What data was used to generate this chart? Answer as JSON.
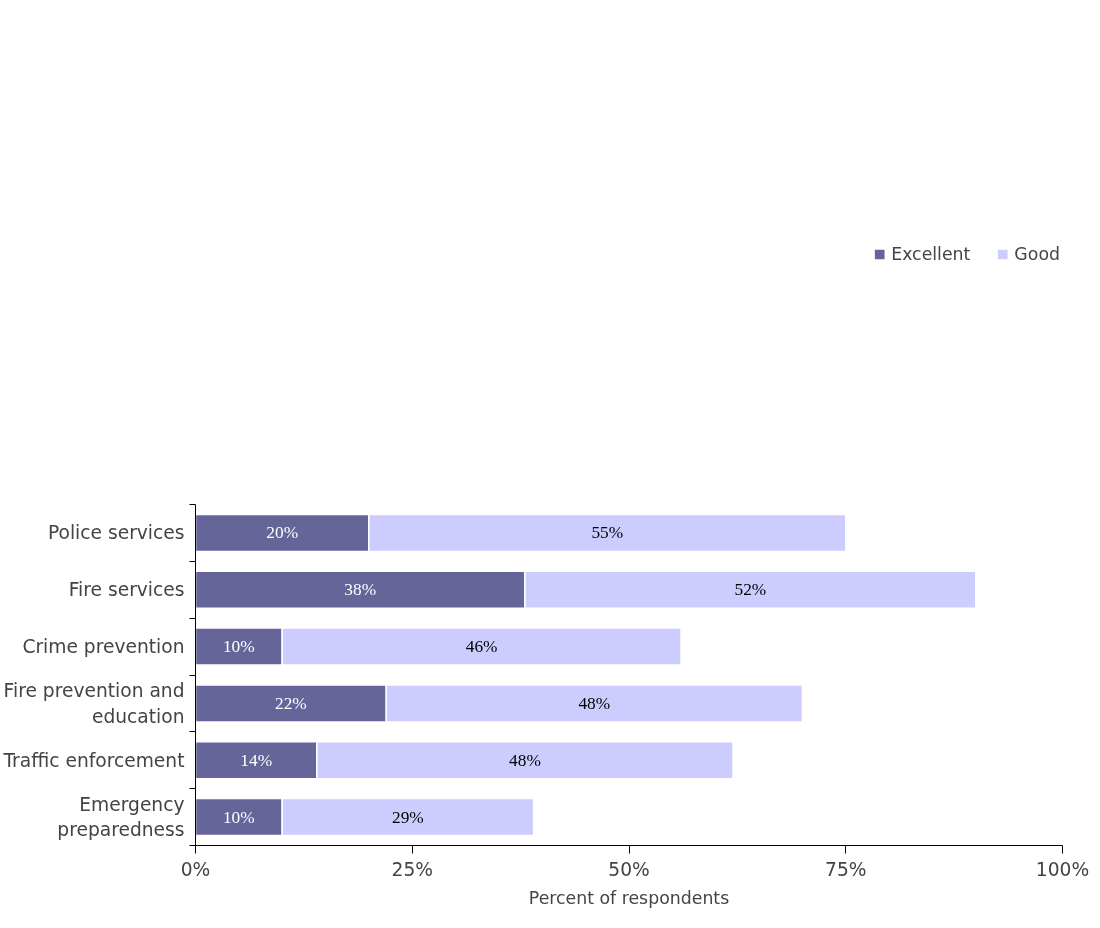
{
  "chart_data": {
    "type": "bar",
    "orientation": "horizontal",
    "stacked": true,
    "xlabel": "Percent of respondents",
    "categories": [
      "Police services",
      "Fire services",
      "Crime prevention",
      "Fire prevention and education",
      "Traffic enforcement",
      "Emergency preparedness"
    ],
    "series": [
      {
        "name": "Excellent",
        "color": "#65659a",
        "values": [
          20,
          38,
          10,
          22,
          14,
          10
        ],
        "value_labels": [
          "20%",
          "38%",
          "10%",
          "22%",
          "14%",
          "10%"
        ]
      },
      {
        "name": "Good",
        "color": "#ccccff",
        "values": [
          55,
          52,
          46,
          48,
          48,
          29
        ],
        "value_labels": [
          "55%",
          "52%",
          "46%",
          "48%",
          "48%",
          "29%"
        ]
      }
    ],
    "xlim": [
      0,
      100
    ],
    "xticks": [
      {
        "value": 0,
        "label": "0%"
      },
      {
        "value": 25,
        "label": "25%"
      },
      {
        "value": 50,
        "label": "50%"
      },
      {
        "value": 75,
        "label": "75%"
      },
      {
        "value": 100,
        "label": "100%"
      }
    ],
    "grid": false,
    "legend": "top right"
  }
}
